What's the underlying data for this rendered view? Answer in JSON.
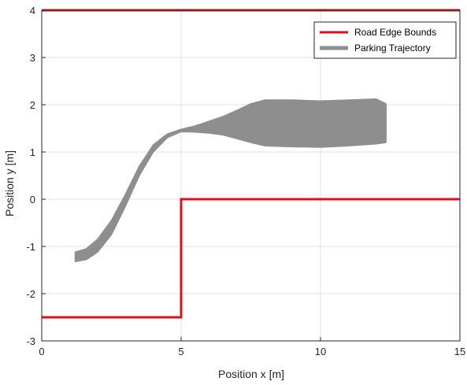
{
  "chart_data": {
    "type": "line",
    "xlabel": "Position x [m]",
    "ylabel": "Position y [m]",
    "xlim": [
      0,
      15
    ],
    "ylim": [
      -3,
      4
    ],
    "xticks": [
      0,
      5,
      10,
      15
    ],
    "yticks": [
      -3,
      -2,
      -1,
      0,
      1,
      2,
      3,
      4
    ],
    "grid": true,
    "legend_position": "top-right",
    "series": [
      {
        "name": "Road Edge Bounds",
        "color": "#e0101a",
        "segments": [
          [
            [
              0,
              4
            ],
            [
              15,
              4
            ]
          ],
          [
            [
              0,
              -2.5
            ],
            [
              5,
              -2.5
            ],
            [
              5,
              0
            ],
            [
              15,
              0
            ]
          ]
        ]
      },
      {
        "name": "Parking Trajectory",
        "color": "#8e8e8e",
        "envelope_upper": [
          [
            1.2,
            -1.12
          ],
          [
            1.6,
            -1.05
          ],
          [
            2.0,
            -0.85
          ],
          [
            2.5,
            -0.45
          ],
          [
            3.0,
            0.1
          ],
          [
            3.5,
            0.7
          ],
          [
            4.0,
            1.15
          ],
          [
            4.5,
            1.38
          ],
          [
            5.0,
            1.48
          ],
          [
            5.5,
            1.55
          ],
          [
            6.0,
            1.65
          ],
          [
            6.5,
            1.75
          ],
          [
            7.0,
            1.88
          ],
          [
            7.5,
            2.02
          ],
          [
            8.0,
            2.1
          ],
          [
            9.0,
            2.1
          ],
          [
            10.0,
            2.08
          ],
          [
            11.0,
            2.1
          ],
          [
            12.0,
            2.12
          ],
          [
            12.35,
            2.02
          ]
        ],
        "envelope_lower": [
          [
            12.35,
            1.2
          ],
          [
            12.0,
            1.17
          ],
          [
            11.0,
            1.13
          ],
          [
            10.0,
            1.1
          ],
          [
            9.0,
            1.11
          ],
          [
            8.0,
            1.13
          ],
          [
            7.5,
            1.2
          ],
          [
            7.0,
            1.28
          ],
          [
            6.5,
            1.36
          ],
          [
            6.0,
            1.4
          ],
          [
            5.5,
            1.42
          ],
          [
            5.0,
            1.43
          ],
          [
            4.5,
            1.3
          ],
          [
            4.0,
            1.0
          ],
          [
            3.5,
            0.5
          ],
          [
            3.0,
            -0.15
          ],
          [
            2.5,
            -0.75
          ],
          [
            2.0,
            -1.12
          ],
          [
            1.6,
            -1.28
          ],
          [
            1.2,
            -1.32
          ]
        ]
      }
    ]
  }
}
